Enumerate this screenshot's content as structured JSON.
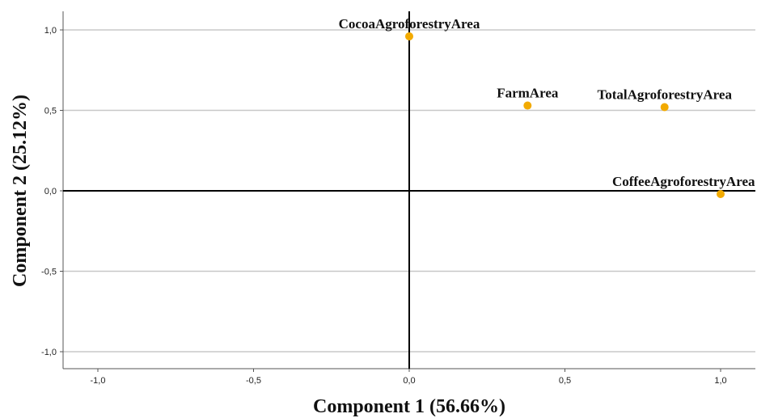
{
  "chart_data": {
    "type": "scatter",
    "xlabel": "Component 1 (56.66%)",
    "ylabel": "Component 2 (25.12%)",
    "xlim": [
      -1.12,
      1.1
    ],
    "ylim": [
      -1.12,
      1.12
    ],
    "x_ticks": [
      -1.0,
      -0.5,
      0.0,
      0.5,
      1.0
    ],
    "x_tick_labels": [
      "-1,0",
      "-0,5",
      "0,0",
      "0,5",
      "1,0"
    ],
    "y_ticks": [
      1.0,
      0.5,
      0.0,
      -0.5,
      -1.0
    ],
    "y_tick_labels": [
      "1,0",
      "0,5",
      "0,0",
      "-0,5",
      "-1,0"
    ],
    "grid": "horizontal",
    "reference_lines": {
      "x": 0,
      "y": 0
    },
    "point_color": "#f2aa00",
    "points": [
      {
        "label": "CocoaAgroforestryArea",
        "x": 0.0,
        "y": 0.96
      },
      {
        "label": "FarmArea",
        "x": 0.38,
        "y": 0.53
      },
      {
        "label": "TotalAgroforestryArea",
        "x": 0.82,
        "y": 0.52
      },
      {
        "label": "CoffeeAgroforestryArea",
        "x": 1.0,
        "y": -0.02
      }
    ]
  }
}
